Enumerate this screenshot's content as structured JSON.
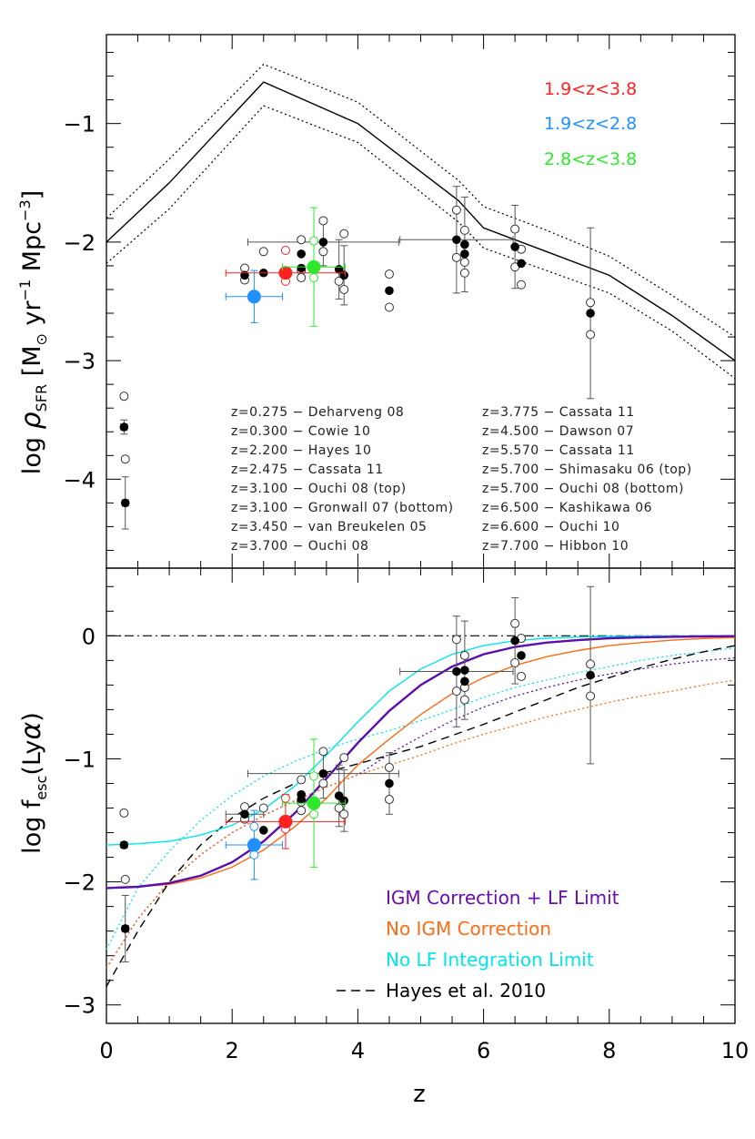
{
  "chart_data": [
    {
      "type": "scatter",
      "panel": "top",
      "ylabel_main": "log ",
      "ylabel_rho": "ρ",
      "ylabel_sub": "SFR",
      "ylabel_unit_open": " [M",
      "ylabel_unit_sun": "⊙",
      "ylabel_unit_rest": " yr",
      "ylabel_exp1": "−1",
      "ylabel_unit_mpc": " Mpc",
      "ylabel_exp2": "−3",
      "ylabel_close": "]",
      "xlim": [
        0,
        10
      ],
      "ylim": [
        -4.75,
        -0.25
      ],
      "yticks": [
        -4,
        -3,
        -2,
        -1
      ],
      "ytick_labels": [
        "−4",
        "−3",
        "−2",
        "−1"
      ],
      "range_labels": [
        {
          "text": "1.9<z<3.8",
          "color": "#ff2020"
        },
        {
          "text": "1.9<z<2.8",
          "color": "#1e90ff"
        },
        {
          "text": "2.8<z<3.8",
          "color": "#2ee82e"
        }
      ],
      "references": [
        "z=0.275 − Deharveng 08",
        "z=0.300 − Cowie 10",
        "z=2.200 − Hayes 10",
        "z=2.475 − Cassata 11",
        "z=3.100 − Ouchi 08 (top)",
        "z=3.100 − Gronwall 07 (bottom)",
        "z=3.450 − van Breukelen 05",
        "z=3.700 − Ouchi 08",
        "z=3.775 − Cassata 11",
        "z=4.500 − Dawson 07",
        "z=5.570 − Cassata 11",
        "z=5.700 − Shimasaku 06 (top)",
        "z=5.700 − Ouchi 08 (bottom)",
        "z=6.500 − Kashikawa 06",
        "z=6.600 − Ouchi 10",
        "z=7.700 − Hibbon 10"
      ],
      "sfr_curve": {
        "x": [
          0,
          1,
          2.5,
          4,
          5.6,
          6,
          7,
          8,
          9,
          10
        ],
        "y": [
          -2.0,
          -1.5,
          -0.65,
          -1.0,
          -1.65,
          -1.88,
          -2.08,
          -2.28,
          -2.62,
          -3.0
        ],
        "upper": [
          -1.8,
          -1.3,
          -0.5,
          -0.82,
          -1.48,
          -1.7,
          -1.9,
          -2.12,
          -2.45,
          -2.8
        ],
        "lower": [
          -2.18,
          -1.72,
          -0.85,
          -1.16,
          -1.83,
          -2.05,
          -2.24,
          -2.43,
          -2.75,
          -3.15
        ]
      },
      "filled_points": [
        {
          "x": 0.28,
          "y": -3.56,
          "yerr": 0.06,
          "xerr": 0.05
        },
        {
          "x": 0.3,
          "y": -4.2,
          "yerr": 0.22,
          "xerr": 0.05
        },
        {
          "x": 2.2,
          "y": -2.28,
          "yerr": 0.0,
          "xerr": 0.0
        },
        {
          "x": 2.5,
          "y": -2.26,
          "yerr": 0.0,
          "xerr": 0.0
        },
        {
          "x": 3.1,
          "y": -2.1,
          "yerr": 0.0,
          "xerr": 0.0
        },
        {
          "x": 3.1,
          "y": -2.22,
          "yerr": 0.0,
          "xerr": 0.0
        },
        {
          "x": 3.45,
          "y": -2.0,
          "yerr": 0.2,
          "xerr": 1.2
        },
        {
          "x": 3.7,
          "y": -2.23,
          "yerr": 0.25,
          "xerr": 0.0
        },
        {
          "x": 3.78,
          "y": -2.28,
          "yerr": 0.25,
          "xerr": 0.0
        },
        {
          "x": 4.5,
          "y": -2.41,
          "yerr": 0.0,
          "xerr": 0.0
        },
        {
          "x": 5.57,
          "y": -1.98,
          "yerr": 0.45,
          "xerr": 0.9
        },
        {
          "x": 5.7,
          "y": -2.02,
          "yerr": 0.4,
          "xerr": 0.0
        },
        {
          "x": 5.7,
          "y": -2.1,
          "yerr": 0.0,
          "xerr": 0.0
        },
        {
          "x": 6.5,
          "y": -2.04,
          "yerr": 0.35,
          "xerr": 0.0
        },
        {
          "x": 6.6,
          "y": -2.18,
          "yerr": 0.0,
          "xerr": 0.0
        },
        {
          "x": 7.7,
          "y": -2.6,
          "yerr": 0.72,
          "xerr": 0.0
        }
      ],
      "open_points": [
        {
          "x": 0.28,
          "y": -3.3
        },
        {
          "x": 0.3,
          "y": -3.83
        },
        {
          "x": 2.2,
          "y": -2.22
        },
        {
          "x": 2.2,
          "y": -2.32
        },
        {
          "x": 2.5,
          "y": -2.08
        },
        {
          "x": 3.1,
          "y": -1.98
        },
        {
          "x": 3.1,
          "y": -2.24
        },
        {
          "x": 3.1,
          "y": -2.3
        },
        {
          "x": 3.45,
          "y": -1.82
        },
        {
          "x": 3.45,
          "y": -2.08
        },
        {
          "x": 3.7,
          "y": -2.33
        },
        {
          "x": 3.78,
          "y": -1.93
        },
        {
          "x": 3.78,
          "y": -2.4
        },
        {
          "x": 4.5,
          "y": -2.27
        },
        {
          "x": 4.5,
          "y": -2.55
        },
        {
          "x": 5.57,
          "y": -1.73
        },
        {
          "x": 5.57,
          "y": -2.13
        },
        {
          "x": 5.7,
          "y": -1.9
        },
        {
          "x": 5.7,
          "y": -2.17
        },
        {
          "x": 5.7,
          "y": -2.26
        },
        {
          "x": 6.5,
          "y": -1.89
        },
        {
          "x": 6.5,
          "y": -2.21
        },
        {
          "x": 6.6,
          "y": -2.06
        },
        {
          "x": 6.6,
          "y": -2.36
        },
        {
          "x": 7.7,
          "y": -2.51
        },
        {
          "x": 7.7,
          "y": -2.78
        }
      ],
      "colored_points": [
        {
          "x": 2.85,
          "y": -2.26,
          "xerr_lo": 0.95,
          "xerr_hi": 0.95,
          "yerr": 0.0,
          "color": "#ff2020",
          "open_above": -2.07,
          "open_below": -2.33
        },
        {
          "x": 2.35,
          "y": -2.46,
          "xerr_lo": 0.45,
          "xerr_hi": 0.45,
          "yerr": 0.22,
          "color": "#1e90ff"
        },
        {
          "x": 3.3,
          "y": -2.21,
          "xerr_lo": 0.5,
          "xerr_hi": 0.5,
          "yerr": 0.5,
          "color": "#2ee82e",
          "open_above": -1.99,
          "open_below": -2.3
        }
      ]
    },
    {
      "type": "scatter",
      "panel": "bottom",
      "ylabel_main": "log f",
      "ylabel_sub": "esc",
      "ylabel_paren": "(Ly",
      "ylabel_alpha": "α",
      "ylabel_close": ")",
      "xlabel": "z",
      "xlim": [
        0,
        10
      ],
      "ylim": [
        -3.15,
        0.55
      ],
      "xticks": [
        0,
        2,
        4,
        6,
        8,
        10
      ],
      "xtick_labels": [
        "0",
        "2",
        "4",
        "6",
        "8",
        "10"
      ],
      "yticks": [
        -3,
        -2,
        -1,
        0
      ],
      "ytick_labels": [
        "−3",
        "−2",
        "−1",
        "0"
      ],
      "fit_legend": [
        {
          "label": "IGM Correction + LF Limit",
          "color": "#6a0dad",
          "style": "text"
        },
        {
          "label": "No IGM Correction",
          "color": "#ff6a14",
          "style": "text"
        },
        {
          "label": "No LF Integration Limit",
          "color": "#00e5ee",
          "style": "text"
        },
        {
          "label": "Hayes et al. 2010",
          "color": "#000000",
          "style": "dashed"
        }
      ],
      "curves": {
        "igm_lf_solid": {
          "color": "#5b0fa8",
          "x": [
            0,
            0.5,
            1,
            1.5,
            2,
            2.5,
            3,
            3.5,
            4,
            4.5,
            5,
            5.5,
            6,
            6.5,
            7,
            7.5,
            8,
            8.5,
            9,
            9.5,
            10
          ],
          "y": [
            -2.05,
            -2.04,
            -2.01,
            -1.95,
            -1.84,
            -1.67,
            -1.44,
            -1.16,
            -0.87,
            -0.61,
            -0.4,
            -0.25,
            -0.15,
            -0.09,
            -0.055,
            -0.035,
            -0.02,
            -0.013,
            -0.008,
            -0.005,
            -0.003
          ]
        },
        "igm_lf_dotted": {
          "color": "#5b0fa8",
          "x": [
            0,
            0.5,
            1,
            1.5,
            2,
            2.5,
            3,
            3.5,
            4,
            4.5,
            5,
            5.5,
            6,
            6.5,
            7,
            7.5,
            8,
            8.5,
            9,
            9.5,
            10
          ],
          "y": [
            -2.7,
            -2.3,
            -2.0,
            -1.78,
            -1.6,
            -1.46,
            -1.34,
            -1.23,
            -1.13,
            -0.96,
            -0.82,
            -0.69,
            -0.58,
            -0.49,
            -0.42,
            -0.36,
            -0.31,
            -0.27,
            -0.23,
            -0.2,
            -0.18
          ]
        },
        "noigm_solid": {
          "color": "#ff6a14",
          "x": [
            0,
            0.5,
            1,
            1.5,
            2,
            2.5,
            3,
            3.5,
            4,
            4.5,
            5,
            5.5,
            6,
            6.5,
            7,
            7.5,
            8,
            8.5,
            9,
            9.5,
            10
          ],
          "y": [
            -2.05,
            -2.04,
            -2.02,
            -1.97,
            -1.88,
            -1.74,
            -1.55,
            -1.32,
            -1.05,
            -0.84,
            -0.64,
            -0.47,
            -0.34,
            -0.24,
            -0.17,
            -0.12,
            -0.08,
            -0.055,
            -0.035,
            -0.022,
            -0.014
          ]
        },
        "noigm_dotted": {
          "color": "#ff6a14",
          "x": [
            0,
            0.5,
            1,
            1.5,
            2,
            2.5,
            3,
            3.5,
            4,
            4.5,
            5,
            5.5,
            6,
            6.5,
            7,
            7.5,
            8,
            8.5,
            9,
            9.5,
            10
          ],
          "y": [
            -2.7,
            -2.3,
            -2.0,
            -1.78,
            -1.6,
            -1.46,
            -1.34,
            -1.23,
            -1.13,
            -1.05,
            -0.97,
            -0.88,
            -0.8,
            -0.73,
            -0.66,
            -0.6,
            -0.54,
            -0.49,
            -0.45,
            -0.4,
            -0.36
          ]
        },
        "nolf_solid": {
          "color": "#00e5ee",
          "x": [
            0,
            0.5,
            1,
            1.5,
            2,
            2.5,
            3,
            3.5,
            4,
            4.5,
            5,
            5.5,
            6,
            6.5,
            7,
            7.5,
            8,
            8.5,
            9,
            9.5,
            10
          ],
          "y": [
            -1.7,
            -1.69,
            -1.67,
            -1.62,
            -1.54,
            -1.41,
            -1.22,
            -0.97,
            -0.7,
            -0.45,
            -0.27,
            -0.15,
            -0.08,
            -0.04,
            -0.02,
            -0.01,
            -0.005,
            -0.003,
            -0.002,
            -0.001,
            0.0
          ]
        },
        "nolf_dotted": {
          "color": "#00e5ee",
          "x": [
            0,
            0.5,
            1,
            1.5,
            2,
            2.5,
            3,
            3.5,
            4,
            4.5,
            5,
            5.5,
            6,
            6.5,
            7,
            7.5,
            8,
            8.5,
            9,
            9.5,
            10
          ],
          "y": [
            -2.55,
            -2.05,
            -1.75,
            -1.5,
            -1.3,
            -1.14,
            -1.02,
            -0.92,
            -0.84,
            -0.77,
            -0.69,
            -0.6,
            -0.5,
            -0.42,
            -0.36,
            -0.3,
            -0.25,
            -0.2,
            -0.16,
            -0.13,
            -0.1
          ]
        },
        "hayes_dashed": {
          "color": "#000000",
          "x": [
            0,
            0.5,
            1,
            1.5,
            2,
            2.5,
            3,
            3.5,
            4,
            4.5,
            5,
            5.5,
            6,
            6.5,
            7,
            7.5,
            8,
            8.5,
            9,
            9.5,
            10
          ],
          "y": [
            -2.85,
            -2.4,
            -2.0,
            -1.7,
            -1.48,
            -1.32,
            -1.2,
            -1.11,
            -1.04,
            -0.97,
            -0.9,
            -0.81,
            -0.72,
            -0.62,
            -0.52,
            -0.42,
            -0.34,
            -0.26,
            -0.19,
            -0.13,
            -0.08
          ]
        },
        "dashdot_zero": {
          "color": "#000000",
          "x": [
            0,
            10
          ],
          "y": [
            0,
            0
          ]
        }
      },
      "filled_points": [
        {
          "x": 0.28,
          "y": -1.7,
          "yerr": 0.0,
          "xerr": 0.05
        },
        {
          "x": 0.3,
          "y": -2.38,
          "yerr": 0.27,
          "xerr": 0.05
        },
        {
          "x": 2.2,
          "y": -1.45,
          "yerr": 0.0,
          "xerr": 0.3
        },
        {
          "x": 2.5,
          "y": -1.58,
          "yerr": 0.0,
          "xerr": 0.0
        },
        {
          "x": 3.1,
          "y": -1.29,
          "yerr": 0.0,
          "xerr": 0.0
        },
        {
          "x": 3.1,
          "y": -1.33,
          "yerr": 0.0,
          "xerr": 0.0
        },
        {
          "x": 3.45,
          "y": -1.12,
          "yerr": 0.2,
          "xerr": 1.2
        },
        {
          "x": 3.7,
          "y": -1.3,
          "yerr": 0.25,
          "xerr": 0.0
        },
        {
          "x": 3.78,
          "y": -1.34,
          "yerr": 0.25,
          "xerr": 0.0
        },
        {
          "x": 4.5,
          "y": -1.2,
          "yerr": 0.25,
          "xerr": 0.0
        },
        {
          "x": 5.57,
          "y": -0.29,
          "yerr": 0.45,
          "xerr": 0.9
        },
        {
          "x": 5.7,
          "y": -0.28,
          "yerr": 0.4,
          "xerr": 0.0
        },
        {
          "x": 5.7,
          "y": -0.37,
          "yerr": 0.0,
          "xerr": 0.0
        },
        {
          "x": 6.5,
          "y": -0.04,
          "yerr": 0.35,
          "xerr": 0.0
        },
        {
          "x": 6.6,
          "y": -0.16,
          "yerr": 0.0,
          "xerr": 0.0
        },
        {
          "x": 7.7,
          "y": -0.32,
          "yerr": 0.72,
          "xerr": 0.0
        }
      ],
      "open_points": [
        {
          "x": 0.28,
          "y": -1.44
        },
        {
          "x": 0.3,
          "y": -1.98
        },
        {
          "x": 2.2,
          "y": -1.39
        },
        {
          "x": 2.2,
          "y": -1.49
        },
        {
          "x": 2.5,
          "y": -1.4
        },
        {
          "x": 3.1,
          "y": -1.17
        },
        {
          "x": 3.1,
          "y": -1.35
        },
        {
          "x": 3.1,
          "y": -1.42
        },
        {
          "x": 3.45,
          "y": -0.94
        },
        {
          "x": 3.45,
          "y": -1.2
        },
        {
          "x": 3.7,
          "y": -1.4
        },
        {
          "x": 3.78,
          "y": -0.99
        },
        {
          "x": 3.78,
          "y": -1.45
        },
        {
          "x": 4.5,
          "y": -1.07
        },
        {
          "x": 4.5,
          "y": -1.33
        },
        {
          "x": 5.57,
          "y": -0.03
        },
        {
          "x": 5.57,
          "y": -0.45
        },
        {
          "x": 5.7,
          "y": -0.16
        },
        {
          "x": 5.7,
          "y": -0.42
        },
        {
          "x": 5.7,
          "y": -0.52
        },
        {
          "x": 6.5,
          "y": 0.1
        },
        {
          "x": 6.5,
          "y": -0.22
        },
        {
          "x": 6.6,
          "y": -0.02
        },
        {
          "x": 6.6,
          "y": -0.33
        },
        {
          "x": 7.7,
          "y": -0.23
        },
        {
          "x": 7.7,
          "y": -0.49
        }
      ],
      "colored_points": [
        {
          "x": 2.85,
          "y": -1.51,
          "xerr_lo": 0.95,
          "xerr_hi": 0.95,
          "yerr": 0.22,
          "color": "#ff2020",
          "open_above": -1.32,
          "open_below": -1.57
        },
        {
          "x": 2.35,
          "y": -1.7,
          "xerr_lo": 0.45,
          "xerr_hi": 0.45,
          "yerr": 0.28,
          "color": "#1e90ff",
          "open_above": -1.55,
          "open_below": -1.78
        },
        {
          "x": 3.3,
          "y": -1.36,
          "xerr_lo": 0.5,
          "xerr_hi": 0.5,
          "yerr": 0.52,
          "color": "#2ee82e",
          "open_above": -1.14,
          "open_below": -1.45
        }
      ]
    }
  ]
}
